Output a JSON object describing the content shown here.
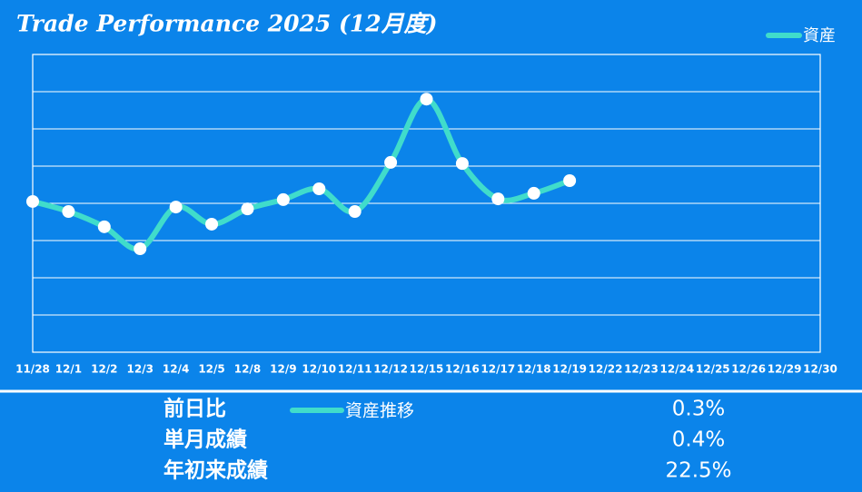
{
  "chart_data": {
    "type": "line",
    "title": "Trade Performance 2025 (12月度)",
    "categories": [
      "11/28",
      "12/1",
      "12/2",
      "12/3",
      "12/4",
      "12/5",
      "12/8",
      "12/9",
      "12/10",
      "12/11",
      "12/12",
      "12/15",
      "12/16",
      "12/17",
      "12/18",
      "12/19",
      "12/22",
      "12/23",
      "12/24",
      "12/25",
      "12/26",
      "12/29",
      "12/30"
    ],
    "series": [
      {
        "name": "資産",
        "color": "#40dccb",
        "values": [
          4.05,
          3.78,
          3.37,
          2.78,
          3.9,
          3.44,
          3.85,
          4.1,
          4.39,
          3.78,
          5.1,
          6.8,
          5.07,
          4.12,
          4.27,
          4.61,
          null,
          null,
          null,
          null,
          null,
          null,
          null
        ]
      }
    ],
    "ylim": [
      0,
      8
    ],
    "yticks": [
      0,
      1,
      2,
      3,
      4,
      5,
      6,
      7,
      8
    ],
    "grid": true
  },
  "summary": {
    "legend": "資産推移",
    "rows": [
      {
        "label": "前日比",
        "value": "0.3%"
      },
      {
        "label": "単月成績",
        "value": "0.4%"
      },
      {
        "label": "年初来成績",
        "value": "22.5%"
      }
    ]
  }
}
